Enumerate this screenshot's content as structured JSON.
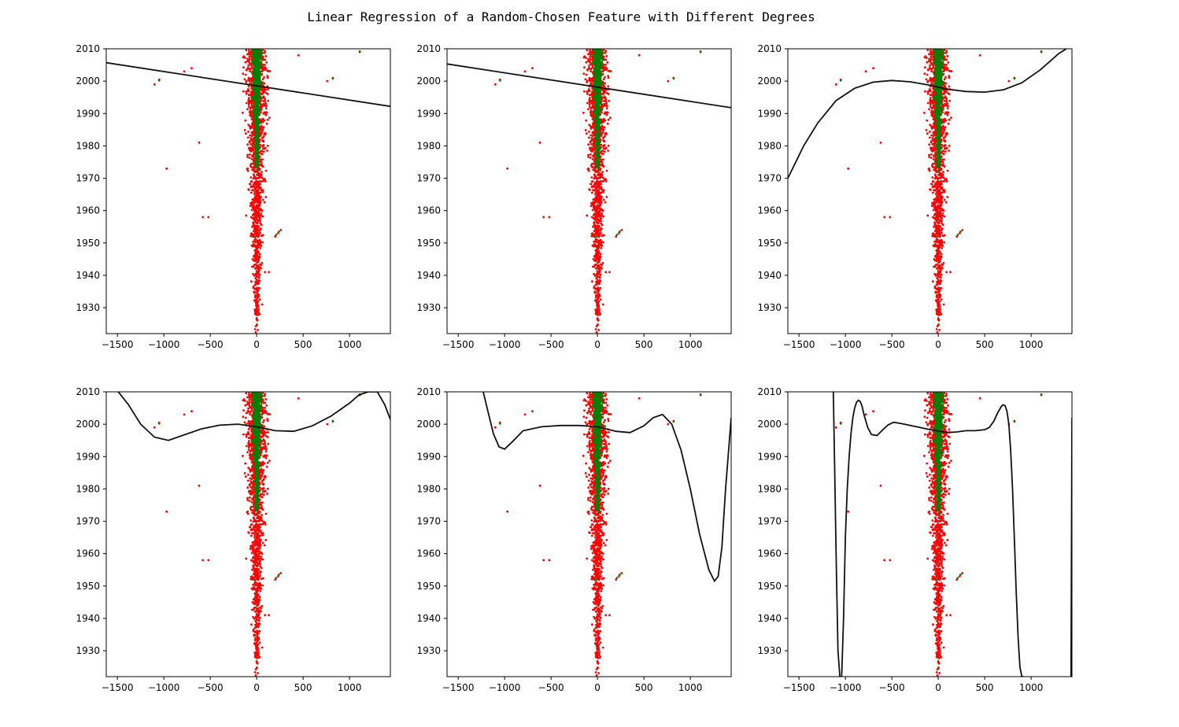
{
  "figure": {
    "title": "Linear Regression of a Random-Chosen Feature with Different Degrees"
  },
  "colors": {
    "red_points": "#ff0000",
    "green_points": "#008000",
    "fit_line": "#111111",
    "axes": "#000000"
  },
  "chart_data": [
    {
      "type": "scatter",
      "fit": "polynomial",
      "xlim": [
        -1620,
        1440
      ],
      "ylim": [
        1922,
        2010
      ],
      "xticks": [
        "-1500",
        "-1000",
        "-500",
        "0",
        "500",
        "1000"
      ],
      "yticks": [
        "1930",
        "1940",
        "1950",
        "1960",
        "1970",
        "1980",
        "1990",
        "2000",
        "2010"
      ],
      "curve": {
        "x": [
          -1620,
          1440
        ],
        "y": [
          2005.7,
          1992.2
        ]
      }
    },
    {
      "type": "scatter",
      "fit": "polynomial",
      "xlim": [
        -1620,
        1440
      ],
      "ylim": [
        1922,
        2010
      ],
      "xticks": [
        "-1500",
        "-1000",
        "-500",
        "0",
        "500",
        "1000"
      ],
      "yticks": [
        "1930",
        "1940",
        "1950",
        "1960",
        "1970",
        "1980",
        "1990",
        "2000",
        "2010"
      ],
      "curve": {
        "x": [
          -1620,
          1440
        ],
        "y": [
          2005.3,
          1991.8
        ]
      }
    },
    {
      "type": "scatter",
      "fit": "polynomial",
      "xlim": [
        -1620,
        1440
      ],
      "ylim": [
        1922,
        2010
      ],
      "xticks": [
        "-1500",
        "-1000",
        "-500",
        "0",
        "500",
        "1000"
      ],
      "yticks": [
        "1930",
        "1940",
        "1950",
        "1960",
        "1970",
        "1980",
        "1990",
        "2000",
        "2010"
      ],
      "curve": {
        "x": [
          -1620,
          -1450,
          -1300,
          -1100,
          -900,
          -700,
          -500,
          -300,
          -100,
          100,
          300,
          500,
          700,
          900,
          1100,
          1300,
          1380
        ],
        "y": [
          1970,
          1980,
          1987,
          1994,
          1997.8,
          1999.7,
          2000.2,
          1999.8,
          1998.8,
          1997.5,
          1996.8,
          1996.6,
          1997.3,
          1999.5,
          2003.5,
          2008.6,
          2010
        ]
      }
    },
    {
      "type": "scatter",
      "fit": "polynomial",
      "xlim": [
        -1620,
        1440
      ],
      "ylim": [
        1922,
        2010
      ],
      "xticks": [
        "-1500",
        "-1000",
        "-500",
        "0",
        "500",
        "1000"
      ],
      "yticks": [
        "1930",
        "1940",
        "1950",
        "1960",
        "1970",
        "1980",
        "1990",
        "2000",
        "2010"
      ],
      "curve": {
        "x": [
          -1490,
          -1380,
          -1250,
          -1100,
          -950,
          -800,
          -600,
          -400,
          -200,
          0,
          200,
          400,
          600,
          800,
          1000,
          1100,
          1200,
          1300,
          1380,
          1440
        ],
        "y": [
          2010,
          2006,
          2000,
          1996,
          1995,
          1996.5,
          1998.5,
          1999.7,
          2000,
          1999.2,
          1998,
          1997.8,
          1999.5,
          2002.5,
          2006.5,
          2009,
          2010,
          2010,
          2006,
          2001.5
        ]
      }
    },
    {
      "type": "scatter",
      "fit": "polynomial",
      "xlim": [
        -1620,
        1440
      ],
      "ylim": [
        1922,
        2010
      ],
      "xticks": [
        "-1500",
        "-1000",
        "-500",
        "0",
        "500",
        "1000"
      ],
      "yticks": [
        "1930",
        "1940",
        "1950",
        "1960",
        "1970",
        "1980",
        "1990",
        "2000",
        "2010"
      ],
      "curve": {
        "x": [
          -1230,
          -1180,
          -1120,
          -1060,
          -1000,
          -920,
          -800,
          -600,
          -400,
          -200,
          0,
          200,
          350,
          500,
          600,
          700,
          800,
          900,
          1000,
          1100,
          1200,
          1260,
          1300,
          1340,
          1380,
          1440
        ],
        "y": [
          2010,
          2004,
          1997,
          1993,
          1992.3,
          1994.5,
          1998,
          1999.2,
          1999.6,
          1999.6,
          1999.2,
          1997.8,
          1997.4,
          1999.5,
          2002,
          2003,
          2000,
          1992,
          1980,
          1966,
          1955,
          1951.5,
          1953,
          1962,
          1980,
          2002
        ]
      }
    },
    {
      "type": "scatter",
      "fit": "polynomial",
      "xlim": [
        -1620,
        1440
      ],
      "ylim": [
        1922,
        2010
      ],
      "xticks": [
        "-1500",
        "-1000",
        "-500",
        "0",
        "500",
        "1000"
      ],
      "yticks": [
        "1930",
        "1940",
        "1950",
        "1960",
        "1970",
        "1980",
        "1990",
        "2000",
        "2010"
      ],
      "curve": [
        {
          "x": [
            -1130,
            -1115,
            -1100,
            -1080,
            -1060,
            -1040,
            -1020,
            -1000,
            -980,
            -960,
            -940,
            -920,
            -900,
            -880,
            -860,
            -840,
            -820,
            -800,
            -760,
            -720,
            -660,
            -600,
            -540,
            -480,
            -400,
            -300,
            -200,
            -100,
            0,
            100,
            200,
            300,
            400,
            500,
            550,
            600,
            640,
            680,
            700,
            720,
            740,
            760,
            780,
            800,
            820,
            840,
            860,
            880,
            900,
            920
          ],
          "y": [
            2010,
            1985,
            1960,
            1930,
            1922,
            1922,
            1940,
            1965,
            1980,
            1990,
            1997,
            2002,
            2005,
            2006.8,
            2007.4,
            2007,
            2005.5,
            2003,
            1999,
            1996.8,
            1996.5,
            1998.2,
            1999.8,
            2000.6,
            2000.2,
            1999.6,
            1999,
            1998.4,
            1997.9,
            1997.4,
            1997.6,
            1998,
            1998,
            1998.3,
            1999,
            2001,
            2003.5,
            2005.5,
            2006,
            2005.7,
            2004,
            2000,
            1992,
            1980,
            1964,
            1948,
            1934,
            1925,
            1922,
            1922
          ]
        },
        {
          "x": [
            1430,
            1440
          ],
          "y": [
            1922,
            2002
          ]
        }
      ]
    }
  ]
}
